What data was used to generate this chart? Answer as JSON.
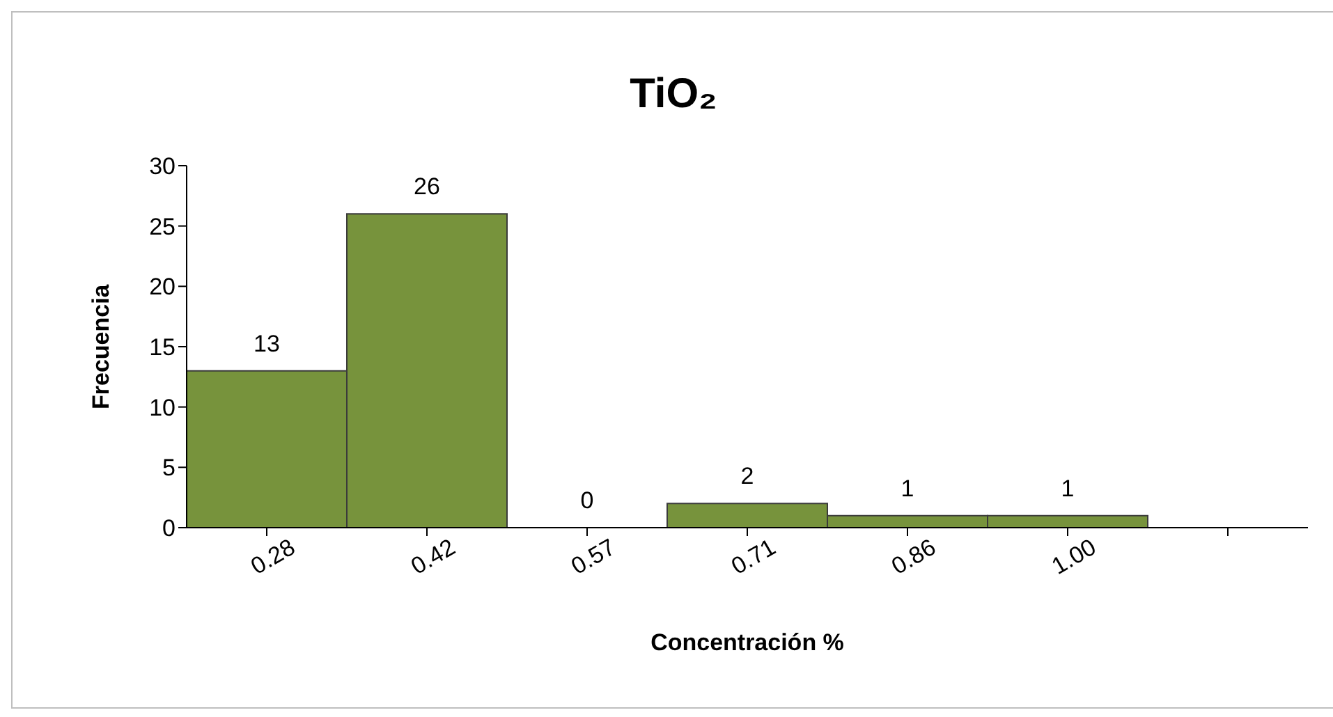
{
  "chart_data": {
    "type": "bar",
    "title": "TiO₂",
    "xlabel": "Concentración %",
    "ylabel": "Frecuencia",
    "categories": [
      "0.28",
      "0.42",
      "0.57",
      "0.71",
      "0.86",
      "1.00",
      null
    ],
    "values": [
      13,
      26,
      0,
      2,
      1,
      1,
      null
    ],
    "color": "#77933c",
    "ylim": [
      0,
      30
    ],
    "yticks": [
      0,
      5,
      10,
      15,
      20,
      25,
      30
    ],
    "data_labels": true,
    "grid": false,
    "legend": false
  }
}
